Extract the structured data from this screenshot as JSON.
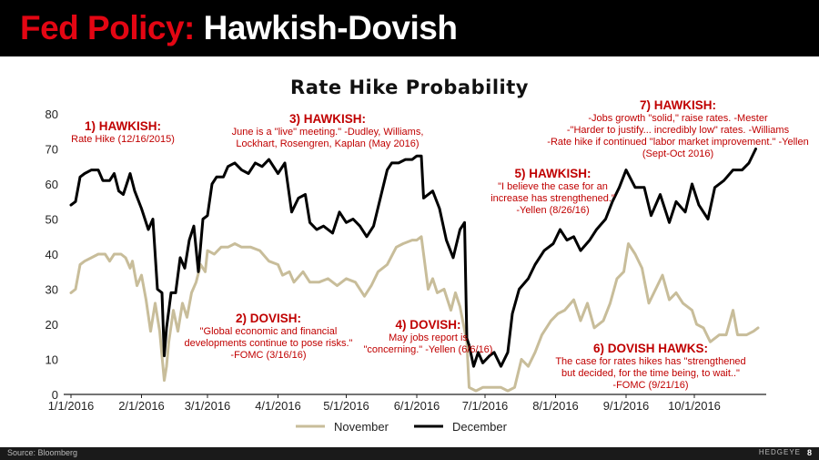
{
  "header": {
    "title_red": "Fed Policy:",
    "title_white": "Hawkish-Dovish"
  },
  "colors": {
    "header_bg": "#000000",
    "title_red": "#e30613",
    "annotation_red": "#c00000",
    "november": "#c8bd9a",
    "december": "#000000"
  },
  "annotations": [
    {
      "heading": "1) HAWKISH:",
      "lines": [
        "Rate Hike (12/16/2015)"
      ]
    },
    {
      "heading": "3) HAWKISH:",
      "lines": [
        "June is a \"live\" meeting.\" -Dudley, Williams,",
        "Lockhart, Rosengren, Kaplan (May 2016)"
      ]
    },
    {
      "heading": "7) HAWKISH:",
      "lines": [
        "-Jobs growth \"solid,\" raise rates. -Mester",
        "-\"Harder to justify... incredibly low\" rates. -Williams",
        "-Rate hike if continued \"labor market improvement.\" -Yellen",
        "(Sept-Oct 2016)"
      ]
    },
    {
      "heading": "5) HAWKISH:",
      "lines": [
        "\"I believe the case for an",
        "increase has strengthened.\"",
        "-Yellen (8/26/16)"
      ]
    },
    {
      "heading": "2) DOVISH:",
      "lines": [
        "\"Global economic and financial",
        "developments continue to pose risks.\"",
        "-FOMC (3/16/16)"
      ]
    },
    {
      "heading": "4) DOVISH:",
      "lines": [
        "May jobs report is",
        "\"concerning.\" -Yellen (6/6/16)"
      ]
    },
    {
      "heading": "6) DOVISH HAWKS:",
      "lines": [
        "The case for rates hikes has \"strengthened",
        "but decided, for the time being, to wait..\"",
        "-FOMC (9/21/16)"
      ]
    }
  ],
  "chart_data": {
    "type": "line",
    "title": "Rate Hike Probability",
    "x_type": "date",
    "x_ticks": [
      "1/1/2016",
      "2/1/2016",
      "3/1/2016",
      "4/1/2016",
      "5/1/2016",
      "6/1/2016",
      "7/1/2016",
      "8/1/2016",
      "9/1/2016",
      "10/1/2016"
    ],
    "ylim": [
      0,
      80
    ],
    "y_ticks": [
      0,
      10,
      20,
      30,
      40,
      50,
      60,
      70,
      80
    ],
    "grid": false,
    "legend_position": "bottom",
    "series": [
      {
        "name": "November",
        "color": "#c8bd9a",
        "points": [
          [
            "2016-01-01",
            29
          ],
          [
            "2016-01-03",
            30
          ],
          [
            "2016-01-05",
            37
          ],
          [
            "2016-01-07",
            38
          ],
          [
            "2016-01-10",
            39
          ],
          [
            "2016-01-13",
            40
          ],
          [
            "2016-01-16",
            40
          ],
          [
            "2016-01-18",
            38
          ],
          [
            "2016-01-20",
            40
          ],
          [
            "2016-01-23",
            40
          ],
          [
            "2016-01-25",
            39
          ],
          [
            "2016-01-27",
            36
          ],
          [
            "2016-01-28",
            38
          ],
          [
            "2016-01-30",
            31
          ],
          [
            "2016-02-01",
            34
          ],
          [
            "2016-02-03",
            27
          ],
          [
            "2016-02-05",
            18
          ],
          [
            "2016-02-07",
            26
          ],
          [
            "2016-02-09",
            18
          ],
          [
            "2016-02-11",
            4
          ],
          [
            "2016-02-12",
            8
          ],
          [
            "2016-02-13",
            15
          ],
          [
            "2016-02-15",
            24
          ],
          [
            "2016-02-17",
            18
          ],
          [
            "2016-02-19",
            26
          ],
          [
            "2016-02-21",
            22
          ],
          [
            "2016-02-23",
            29
          ],
          [
            "2016-02-25",
            32
          ],
          [
            "2016-02-27",
            37
          ],
          [
            "2016-02-29",
            35
          ],
          [
            "2016-03-01",
            41
          ],
          [
            "2016-03-04",
            40
          ],
          [
            "2016-03-07",
            42
          ],
          [
            "2016-03-10",
            42
          ],
          [
            "2016-03-13",
            43
          ],
          [
            "2016-03-16",
            42
          ],
          [
            "2016-03-20",
            42
          ],
          [
            "2016-03-24",
            41
          ],
          [
            "2016-03-28",
            38
          ],
          [
            "2016-04-01",
            37
          ],
          [
            "2016-04-03",
            34
          ],
          [
            "2016-04-06",
            35
          ],
          [
            "2016-04-08",
            32
          ],
          [
            "2016-04-12",
            35
          ],
          [
            "2016-04-15",
            32
          ],
          [
            "2016-04-19",
            32
          ],
          [
            "2016-04-23",
            33
          ],
          [
            "2016-04-27",
            31
          ],
          [
            "2016-05-01",
            33
          ],
          [
            "2016-05-05",
            32
          ],
          [
            "2016-05-09",
            28
          ],
          [
            "2016-05-12",
            31
          ],
          [
            "2016-05-15",
            35
          ],
          [
            "2016-05-19",
            37
          ],
          [
            "2016-05-23",
            42
          ],
          [
            "2016-05-26",
            43
          ],
          [
            "2016-05-30",
            44
          ],
          [
            "2016-06-01",
            44
          ],
          [
            "2016-06-03",
            45
          ],
          [
            "2016-06-06",
            30
          ],
          [
            "2016-06-08",
            33
          ],
          [
            "2016-06-10",
            29
          ],
          [
            "2016-06-13",
            30
          ],
          [
            "2016-06-16",
            24
          ],
          [
            "2016-06-18",
            29
          ],
          [
            "2016-06-20",
            25
          ],
          [
            "2016-06-23",
            15
          ],
          [
            "2016-06-24",
            2
          ],
          [
            "2016-06-27",
            1
          ],
          [
            "2016-06-30",
            2
          ],
          [
            "2016-07-04",
            2
          ],
          [
            "2016-07-08",
            2
          ],
          [
            "2016-07-11",
            1
          ],
          [
            "2016-07-14",
            2
          ],
          [
            "2016-07-17",
            10
          ],
          [
            "2016-07-20",
            8
          ],
          [
            "2016-07-23",
            12
          ],
          [
            "2016-07-26",
            17
          ],
          [
            "2016-07-30",
            21
          ],
          [
            "2016-08-02",
            23
          ],
          [
            "2016-08-05",
            24
          ],
          [
            "2016-08-09",
            27
          ],
          [
            "2016-08-12",
            21
          ],
          [
            "2016-08-15",
            26
          ],
          [
            "2016-08-18",
            19
          ],
          [
            "2016-08-22",
            21
          ],
          [
            "2016-08-25",
            26
          ],
          [
            "2016-08-28",
            33
          ],
          [
            "2016-08-31",
            35
          ],
          [
            "2016-09-02",
            43
          ],
          [
            "2016-09-05",
            40
          ],
          [
            "2016-09-08",
            36
          ],
          [
            "2016-09-11",
            26
          ],
          [
            "2016-09-14",
            30
          ],
          [
            "2016-09-17",
            34
          ],
          [
            "2016-09-20",
            27
          ],
          [
            "2016-09-23",
            29
          ],
          [
            "2016-09-26",
            26
          ],
          [
            "2016-09-30",
            24
          ],
          [
            "2016-10-02",
            20
          ],
          [
            "2016-10-05",
            19
          ],
          [
            "2016-10-08",
            15
          ],
          [
            "2016-10-12",
            17
          ],
          [
            "2016-10-15",
            17
          ],
          [
            "2016-10-18",
            24
          ],
          [
            "2016-10-20",
            17
          ],
          [
            "2016-10-24",
            17
          ],
          [
            "2016-10-27",
            18
          ],
          [
            "2016-10-29",
            19
          ]
        ]
      },
      {
        "name": "December",
        "color": "#000000",
        "points": [
          [
            "2016-01-01",
            54
          ],
          [
            "2016-01-03",
            55
          ],
          [
            "2016-01-05",
            62
          ],
          [
            "2016-01-07",
            63
          ],
          [
            "2016-01-10",
            64
          ],
          [
            "2016-01-13",
            64
          ],
          [
            "2016-01-15",
            61
          ],
          [
            "2016-01-18",
            61
          ],
          [
            "2016-01-20",
            63
          ],
          [
            "2016-01-22",
            58
          ],
          [
            "2016-01-24",
            57
          ],
          [
            "2016-01-27",
            63
          ],
          [
            "2016-01-29",
            58
          ],
          [
            "2016-02-01",
            53
          ],
          [
            "2016-02-04",
            47
          ],
          [
            "2016-02-06",
            50
          ],
          [
            "2016-02-08",
            30
          ],
          [
            "2016-02-10",
            29
          ],
          [
            "2016-02-11",
            11
          ],
          [
            "2016-02-12",
            19
          ],
          [
            "2016-02-14",
            29
          ],
          [
            "2016-02-16",
            29
          ],
          [
            "2016-02-18",
            39
          ],
          [
            "2016-02-20",
            36
          ],
          [
            "2016-02-22",
            44
          ],
          [
            "2016-02-24",
            48
          ],
          [
            "2016-02-26",
            35
          ],
          [
            "2016-02-28",
            50
          ],
          [
            "2016-03-01",
            51
          ],
          [
            "2016-03-03",
            60
          ],
          [
            "2016-03-05",
            62
          ],
          [
            "2016-03-08",
            62
          ],
          [
            "2016-03-10",
            65
          ],
          [
            "2016-03-13",
            66
          ],
          [
            "2016-03-16",
            64
          ],
          [
            "2016-03-19",
            63
          ],
          [
            "2016-03-22",
            66
          ],
          [
            "2016-03-25",
            65
          ],
          [
            "2016-03-28",
            67
          ],
          [
            "2016-04-01",
            63
          ],
          [
            "2016-04-04",
            66
          ],
          [
            "2016-04-07",
            52
          ],
          [
            "2016-04-10",
            56
          ],
          [
            "2016-04-13",
            57
          ],
          [
            "2016-04-15",
            49
          ],
          [
            "2016-04-18",
            47
          ],
          [
            "2016-04-21",
            48
          ],
          [
            "2016-04-25",
            46
          ],
          [
            "2016-04-28",
            52
          ],
          [
            "2016-05-01",
            49
          ],
          [
            "2016-05-04",
            50
          ],
          [
            "2016-05-07",
            48
          ],
          [
            "2016-05-10",
            45
          ],
          [
            "2016-05-13",
            48
          ],
          [
            "2016-05-16",
            56
          ],
          [
            "2016-05-19",
            64
          ],
          [
            "2016-05-21",
            66
          ],
          [
            "2016-05-24",
            66
          ],
          [
            "2016-05-27",
            67
          ],
          [
            "2016-05-30",
            67
          ],
          [
            "2016-06-01",
            68
          ],
          [
            "2016-06-03",
            68
          ],
          [
            "2016-06-04",
            56
          ],
          [
            "2016-06-08",
            58
          ],
          [
            "2016-06-11",
            53
          ],
          [
            "2016-06-14",
            44
          ],
          [
            "2016-06-17",
            39
          ],
          [
            "2016-06-20",
            47
          ],
          [
            "2016-06-22",
            49
          ],
          [
            "2016-06-23",
            16
          ],
          [
            "2016-06-24",
            14
          ],
          [
            "2016-06-26",
            8
          ],
          [
            "2016-06-28",
            12
          ],
          [
            "2016-06-30",
            9
          ],
          [
            "2016-07-03",
            11
          ],
          [
            "2016-07-05",
            12
          ],
          [
            "2016-07-08",
            8
          ],
          [
            "2016-07-11",
            12
          ],
          [
            "2016-07-13",
            23
          ],
          [
            "2016-07-16",
            30
          ],
          [
            "2016-07-20",
            33
          ],
          [
            "2016-07-23",
            37
          ],
          [
            "2016-07-27",
            41
          ],
          [
            "2016-07-31",
            43
          ],
          [
            "2016-08-03",
            47
          ],
          [
            "2016-08-06",
            44
          ],
          [
            "2016-08-09",
            45
          ],
          [
            "2016-08-12",
            41
          ],
          [
            "2016-08-16",
            44
          ],
          [
            "2016-08-19",
            47
          ],
          [
            "2016-08-23",
            50
          ],
          [
            "2016-08-26",
            55
          ],
          [
            "2016-08-29",
            59
          ],
          [
            "2016-09-01",
            64
          ],
          [
            "2016-09-05",
            59
          ],
          [
            "2016-09-09",
            59
          ],
          [
            "2016-09-12",
            51
          ],
          [
            "2016-09-16",
            57
          ],
          [
            "2016-09-20",
            49
          ],
          [
            "2016-09-23",
            55
          ],
          [
            "2016-09-27",
            52
          ],
          [
            "2016-09-30",
            60
          ],
          [
            "2016-10-03",
            54
          ],
          [
            "2016-10-07",
            50
          ],
          [
            "2016-10-10",
            59
          ],
          [
            "2016-10-14",
            61
          ],
          [
            "2016-10-18",
            64
          ],
          [
            "2016-10-22",
            64
          ],
          [
            "2016-10-25",
            66
          ],
          [
            "2016-10-28",
            70
          ]
        ]
      }
    ]
  },
  "footer": {
    "source": "Source: Bloomberg",
    "brand": "HEDGEYE",
    "page": "8"
  }
}
